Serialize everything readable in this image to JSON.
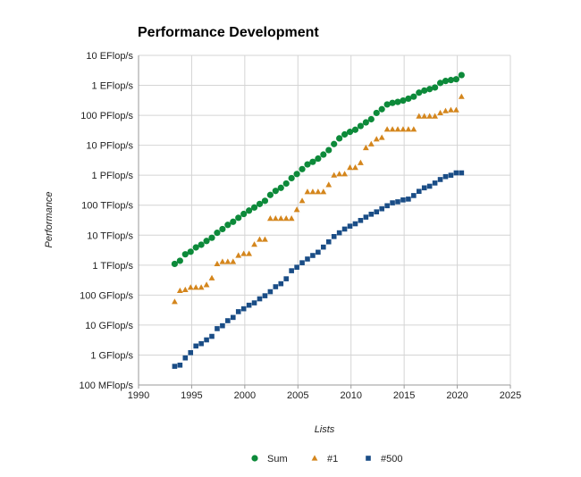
{
  "chart_data": {
    "type": "scatter",
    "title": "Performance Development",
    "xlabel": "Lists",
    "ylabel": "Performance",
    "xlim": [
      1990,
      2025
    ],
    "x_ticks": [
      1990,
      1995,
      2000,
      2005,
      2010,
      2015,
      2020,
      2025
    ],
    "y_scale": "log",
    "ylim_flops": [
      100000000.0,
      1e+19
    ],
    "y_ticks": [
      {
        "label": "10 EFlop/s",
        "value": 1e+19
      },
      {
        "label": "1 EFlop/s",
        "value": 1e+18
      },
      {
        "label": "100 PFlop/s",
        "value": 1e+17
      },
      {
        "label": "10 PFlop/s",
        "value": 1e+16
      },
      {
        "label": "1 PFlop/s",
        "value": 1000000000000000.0
      },
      {
        "label": "100 TFlop/s",
        "value": 100000000000000.0
      },
      {
        "label": "10 TFlop/s",
        "value": 10000000000000.0
      },
      {
        "label": "1 TFlop/s",
        "value": 1000000000000.0
      },
      {
        "label": "100 GFlop/s",
        "value": 100000000000.0
      },
      {
        "label": "10 GFlop/s",
        "value": 10000000000.0
      },
      {
        "label": "1 GFlop/s",
        "value": 1000000000.0
      },
      {
        "label": "100 MFlop/s",
        "value": 100000000.0
      }
    ],
    "grid": true,
    "legend_position": "bottom",
    "series": [
      {
        "name": "Sum",
        "marker": "circle",
        "color": "#0d8a3a",
        "x": [
          1993.4,
          1993.9,
          1994.4,
          1994.9,
          1995.4,
          1995.9,
          1996.4,
          1996.9,
          1997.4,
          1997.9,
          1998.4,
          1998.9,
          1999.4,
          1999.9,
          2000.4,
          2000.9,
          2001.4,
          2001.9,
          2002.4,
          2002.9,
          2003.4,
          2003.9,
          2004.4,
          2004.9,
          2005.4,
          2005.9,
          2006.4,
          2006.9,
          2007.4,
          2007.9,
          2008.4,
          2008.9,
          2009.4,
          2009.9,
          2010.4,
          2010.9,
          2011.4,
          2011.9,
          2012.4,
          2012.9,
          2013.4,
          2013.9,
          2014.4,
          2014.9,
          2015.4,
          2015.9,
          2016.4,
          2016.9,
          2017.4,
          2017.9,
          2018.4,
          2018.9,
          2019.4,
          2019.9,
          2020.4
        ],
        "y": [
          1100000000000.0,
          1400000000000.0,
          2300000000000.0,
          2800000000000.0,
          3900000000000.0,
          4800000000000.0,
          6400000000000.0,
          8200000000000.0,
          12000000000000.0,
          16000000000000.0,
          22000000000000.0,
          28000000000000.0,
          38000000000000.0,
          51000000000000.0,
          66000000000000.0,
          84000000000000.0,
          110000000000000.0,
          140000000000000.0,
          220000000000000.0,
          300000000000000.0,
          380000000000000.0,
          530000000000000.0,
          800000000000000.0,
          1100000000000000.0,
          1600000000000000.0,
          2300000000000000.0,
          2800000000000000.0,
          3600000000000000.0,
          4900000000000000.0,
          6900000000000000.0,
          1.1e+16,
          1.7e+16,
          2.3e+16,
          2.8e+16,
          3.3e+16,
          4.4e+16,
          5.8e+16,
          7.4e+16,
          1.2e+17,
          1.6e+17,
          2.3e+17,
          2.6e+17,
          2.8e+17,
          3.1e+17,
          3.6e+17,
          4.2e+17,
          5.7e+17,
          6.7e+17,
          7.5e+17,
          8.5e+17,
          1.2e+18,
          1.4e+18,
          1.5e+18,
          1.6e+18,
          2.2e+18
        ]
      },
      {
        "name": "#1",
        "marker": "triangle",
        "color": "#d4861d",
        "x": [
          1993.4,
          1993.9,
          1994.4,
          1994.9,
          1995.4,
          1995.9,
          1996.4,
          1996.9,
          1997.4,
          1997.9,
          1998.4,
          1998.9,
          1999.4,
          1999.9,
          2000.4,
          2000.9,
          2001.4,
          2001.9,
          2002.4,
          2002.9,
          2003.4,
          2003.9,
          2004.4,
          2004.9,
          2005.4,
          2005.9,
          2006.4,
          2006.9,
          2007.4,
          2007.9,
          2008.4,
          2008.9,
          2009.4,
          2009.9,
          2010.4,
          2010.9,
          2011.4,
          2011.9,
          2012.4,
          2012.9,
          2013.4,
          2013.9,
          2014.4,
          2014.9,
          2015.4,
          2015.9,
          2016.4,
          2016.9,
          2017.4,
          2017.9,
          2018.4,
          2018.9,
          2019.4,
          2019.9,
          2020.4
        ],
        "y": [
          60000000000.0,
          140000000000.0,
          150000000000.0,
          180000000000.0,
          180000000000.0,
          180000000000.0,
          220000000000.0,
          370000000000.0,
          1100000000000.0,
          1300000000000.0,
          1300000000000.0,
          1300000000000.0,
          2100000000000.0,
          2400000000000.0,
          2400000000000.0,
          4900000000000.0,
          7200000000000.0,
          7200000000000.0,
          36000000000000.0,
          36000000000000.0,
          36000000000000.0,
          36000000000000.0,
          36000000000000.0,
          71000000000000.0,
          140000000000000.0,
          280000000000000.0,
          280000000000000.0,
          280000000000000.0,
          280000000000000.0,
          480000000000000.0,
          1000000000000000.0,
          1100000000000000.0,
          1100000000000000.0,
          1800000000000000.0,
          1800000000000000.0,
          2600000000000000.0,
          8200000000000000.0,
          1.1e+16,
          1.6e+16,
          1.8e+16,
          3.4e+16,
          3.4e+16,
          3.4e+16,
          3.4e+16,
          3.4e+16,
          3.4e+16,
          9.3e+16,
          9.3e+16,
          9.3e+16,
          9.3e+16,
          1.2e+17,
          1.4e+17,
          1.5e+17,
          1.5e+17,
          4.2e+17
        ]
      },
      {
        "name": "#500",
        "marker": "square",
        "color": "#1a4d86",
        "x": [
          1993.4,
          1993.9,
          1994.4,
          1994.9,
          1995.4,
          1995.9,
          1996.4,
          1996.9,
          1997.4,
          1997.9,
          1998.4,
          1998.9,
          1999.4,
          1999.9,
          2000.4,
          2000.9,
          2001.4,
          2001.9,
          2002.4,
          2002.9,
          2003.4,
          2003.9,
          2004.4,
          2004.9,
          2005.4,
          2005.9,
          2006.4,
          2006.9,
          2007.4,
          2007.9,
          2008.4,
          2008.9,
          2009.4,
          2009.9,
          2010.4,
          2010.9,
          2011.4,
          2011.9,
          2012.4,
          2012.9,
          2013.4,
          2013.9,
          2014.4,
          2014.9,
          2015.4,
          2015.9,
          2016.4,
          2016.9,
          2017.4,
          2017.9,
          2018.4,
          2018.9,
          2019.4,
          2019.9,
          2020.4
        ],
        "y": [
          420000000.0,
          460000000.0,
          800000000.0,
          1200000000.0,
          2000000000.0,
          2400000000.0,
          3200000000.0,
          4200000000.0,
          7600000000.0,
          9500000000.0,
          14000000000.0,
          18000000000.0,
          28000000000.0,
          35000000000.0,
          46000000000.0,
          55000000000.0,
          75000000000.0,
          95000000000.0,
          130000000000.0,
          190000000000.0,
          240000000000.0,
          350000000000.0,
          650000000000.0,
          850000000000.0,
          1200000000000.0,
          1600000000000.0,
          2100000000000.0,
          2700000000000.0,
          4000000000000.0,
          6000000000000.0,
          9000000000000.0,
          12000000000000.0,
          16000000000000.0,
          20000000000000.0,
          24000000000000.0,
          31000000000000.0,
          40000000000000.0,
          50000000000000.0,
          60000000000000.0,
          76000000000000.0,
          96000000000000.0,
          120000000000000.0,
          130000000000000.0,
          150000000000000.0,
          160000000000000.0,
          210000000000000.0,
          290000000000000.0,
          380000000000000.0,
          430000000000000.0,
          550000000000000.0,
          720000000000000.0,
          900000000000000.0,
          1000000000000000.0,
          1200000000000000.0,
          1200000000000000.0
        ]
      }
    ]
  }
}
